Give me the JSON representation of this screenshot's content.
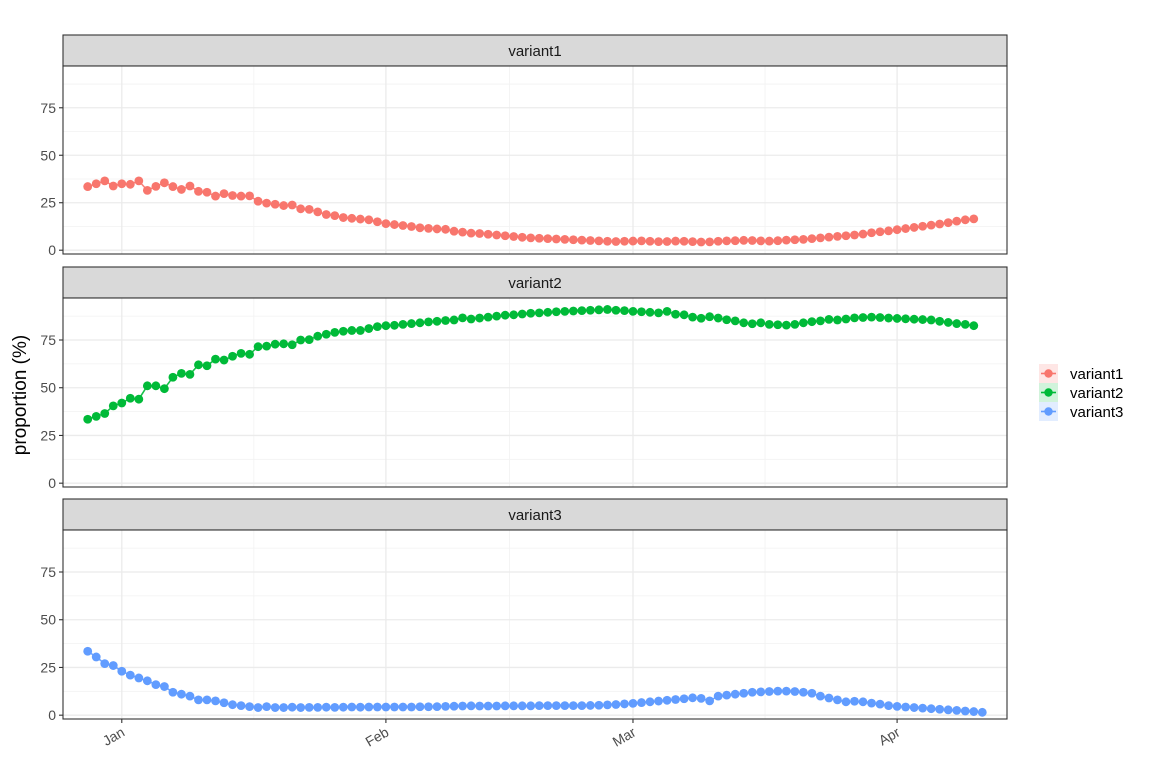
{
  "chart_data": {
    "type": "scatter",
    "ylabel": "proportion (%)",
    "x_start": "2019-12-28",
    "x_step_days": 1,
    "x_ticks": [
      "Jan",
      "Feb",
      "Mar",
      "Apr"
    ],
    "y_ticks": [
      "0",
      "25",
      "50",
      "75"
    ],
    "ylim": [
      -2,
      97
    ],
    "facets": [
      "variant1",
      "variant2",
      "variant3"
    ],
    "legend_position": "right",
    "series": [
      {
        "name": "variant1",
        "color": "#F8766D",
        "values": [
          33.5,
          35,
          36.5,
          33.8,
          35,
          34.7,
          36.5,
          31.5,
          33.6,
          35.5,
          33.5,
          32,
          33.8,
          31,
          30.5,
          28.5,
          29.8,
          28.8,
          28.5,
          28.6,
          25.8,
          24.8,
          24.2,
          23.5,
          23.8,
          21.8,
          21.5,
          20.2,
          18.8,
          18.2,
          17.2,
          16.8,
          16.4,
          16,
          15,
          14,
          13.5,
          13,
          12.5,
          11.8,
          11.5,
          11.2,
          11,
          10,
          9.5,
          9,
          8.8,
          8.4,
          8,
          7.6,
          7.2,
          6.8,
          6.5,
          6.3,
          6.1,
          5.9,
          5.7,
          5.5,
          5.3,
          5.1,
          4.9,
          4.7,
          4.6,
          4.7,
          4.8,
          4.9,
          4.7,
          4.5,
          4.6,
          4.8,
          4.7,
          4.5,
          4.3,
          4.4,
          4.7,
          4.9,
          5,
          5.2,
          5.1,
          4.9,
          4.8,
          5,
          5.3,
          5.5,
          5.7,
          6.1,
          6.5,
          6.9,
          7.3,
          7.6,
          8,
          8.5,
          9.2,
          9.7,
          10.2,
          10.8,
          11.4,
          12,
          12.6,
          13.2,
          13.8,
          14.5,
          15.3,
          16,
          16.5
        ]
      },
      {
        "name": "variant2",
        "color": "#00BA38",
        "values": [
          33.5,
          35,
          36.5,
          40.5,
          42,
          44.5,
          44,
          51,
          51,
          49.5,
          55.5,
          57.5,
          57,
          62,
          61.5,
          65,
          64.5,
          66.5,
          68,
          67.5,
          71.5,
          71.8,
          72.8,
          73,
          72.5,
          75,
          75.2,
          77,
          78,
          79,
          79.6,
          80,
          80,
          81,
          82,
          82.5,
          82.7,
          83.2,
          83.6,
          84,
          84.5,
          84.8,
          85.2,
          85.5,
          86.6,
          86,
          86.5,
          87,
          87.5,
          88,
          88.2,
          88.6,
          89,
          89.2,
          89.5,
          89.8,
          90,
          90.2,
          90.4,
          90.6,
          90.8,
          91,
          90.6,
          90.4,
          90,
          89.8,
          89.5,
          89.2,
          90,
          88.5,
          88.2,
          87,
          86.4,
          87.2,
          86.5,
          85.6,
          85,
          84,
          83.5,
          84,
          83.2,
          83,
          82.8,
          83.2,
          84,
          84.6,
          85,
          85.8,
          85.5,
          86,
          86.6,
          86.8,
          87,
          86.8,
          86.5,
          86.3,
          86.1,
          85.9,
          85.7,
          85.5,
          84.8,
          84.2,
          83.6,
          83.2,
          82.5
        ]
      },
      {
        "name": "variant3",
        "color": "#619CFF",
        "values": [
          33.5,
          30.5,
          27,
          26,
          23,
          21,
          19.5,
          18,
          16,
          15,
          12,
          11,
          10,
          8,
          8,
          7.5,
          6.5,
          5.5,
          5,
          4.5,
          4,
          4.5,
          4,
          4,
          4.2,
          4,
          4.1,
          4.1,
          4.2,
          4.1,
          4.2,
          4.3,
          4.2,
          4.3,
          4.3,
          4.3,
          4.3,
          4.3,
          4.3,
          4.4,
          4.4,
          4.5,
          4.6,
          4.7,
          4.8,
          4.9,
          4.8,
          4.8,
          4.8,
          4.9,
          4.9,
          4.9,
          4.9,
          5,
          5,
          5,
          5,
          5,
          5,
          5.1,
          5.2,
          5.4,
          5.6,
          5.9,
          6.2,
          6.6,
          7,
          7.4,
          7.8,
          8.2,
          8.6,
          9.1,
          8.8,
          7.5,
          10,
          10.5,
          11,
          11.5,
          12,
          12.2,
          12.4,
          12.6,
          12.6,
          12.4,
          12,
          11.5,
          10,
          9,
          8,
          7,
          7.3,
          7,
          6.3,
          5.8,
          5,
          4.6,
          4.3,
          4,
          3.7,
          3.4,
          3.1,
          2.8,
          2.5,
          2.2,
          1.9,
          1.5
        ]
      }
    ]
  }
}
